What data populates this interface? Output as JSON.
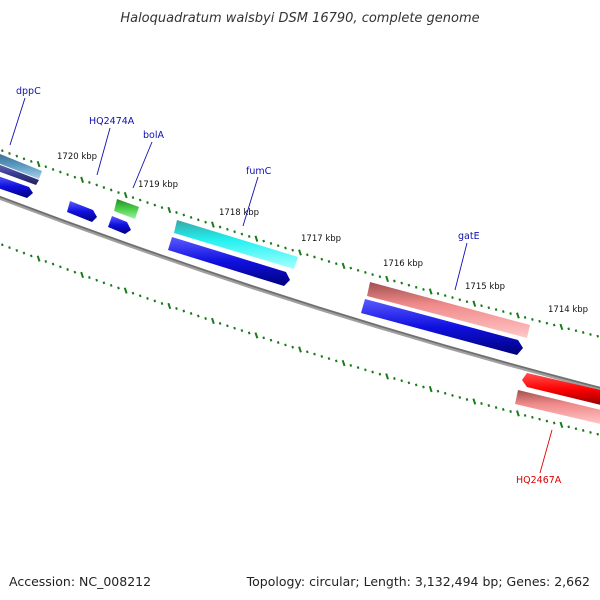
{
  "title": "Haloquadratum walsbyi DSM 16790, complete genome",
  "footer": {
    "accession": "Accession: NC_008212",
    "summary": "Topology: circular; Length: 3,132,494 bp; Genes: 2,662"
  },
  "colors": {
    "backbone": "#808080",
    "tick": "#1a7a1a",
    "label_blue": "#1010b0",
    "label_red": "#e00000"
  },
  "kbp_labels": [
    "1720 kbp",
    "1719 kbp",
    "1718 kbp",
    "1717 kbp",
    "1716 kbp",
    "1715 kbp",
    "1714 kbp"
  ],
  "gene_labels": [
    {
      "name": "dppC",
      "color": "#1010b0"
    },
    {
      "name": "HQ2474A",
      "color": "#1010b0"
    },
    {
      "name": "bolA",
      "color": "#1010b0"
    },
    {
      "name": "fumC",
      "color": "#1010b0"
    },
    {
      "name": "gatE",
      "color": "#1010b0"
    },
    {
      "name": "HQ2467A",
      "color": "#e00000"
    }
  ],
  "features": [
    {
      "name": "dppC-forward",
      "color": "#4f86a8"
    },
    {
      "name": "dppC-reverse",
      "color": "#4b4b9a"
    },
    {
      "name": "HQ2474A",
      "color": "#1a1ad8"
    },
    {
      "name": "bolA",
      "color": "#3cb83c"
    },
    {
      "name": "fumC",
      "color": "#22e6e6"
    },
    {
      "name": "gatE",
      "color": "#ee8a8a"
    },
    {
      "name": "HQ2467A",
      "color": "#ff0000"
    }
  ]
}
